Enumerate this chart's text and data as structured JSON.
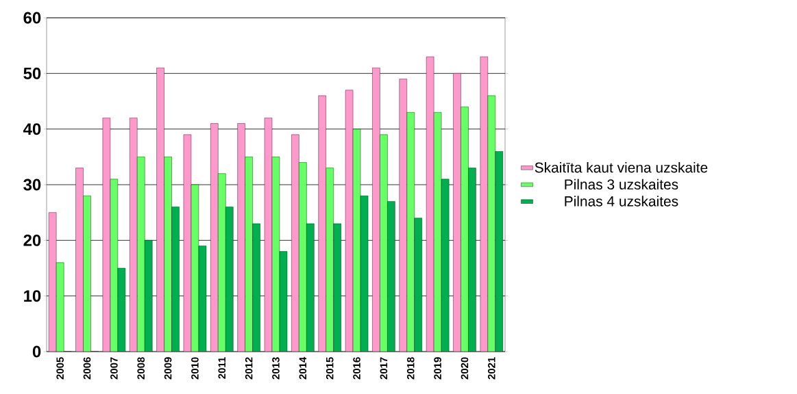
{
  "chart_data": {
    "type": "bar",
    "categories": [
      "2005",
      "2006",
      "2007",
      "2008",
      "2009",
      "2010",
      "2011",
      "2012",
      "2013",
      "2014",
      "2015",
      "2016",
      "2017",
      "2018",
      "2019",
      "2020",
      "2021"
    ],
    "series": [
      {
        "name": "Skaitīta kaut viena uzskaite",
        "color": "#ff99cc",
        "values": [
          25,
          33,
          42,
          42,
          51,
          39,
          41,
          41,
          42,
          39,
          46,
          47,
          51,
          49,
          53,
          50,
          53
        ]
      },
      {
        "name": "Pilnas 3 uzskaites",
        "color": "#66ff66",
        "values": [
          16,
          28,
          31,
          35,
          35,
          30,
          32,
          35,
          35,
          34,
          33,
          40,
          39,
          43,
          43,
          44,
          46
        ]
      },
      {
        "name": "Pilnas 4 uzskaites",
        "color": "#00b050",
        "values": [
          0,
          0,
          15,
          20,
          26,
          19,
          26,
          23,
          18,
          23,
          23,
          28,
          27,
          24,
          31,
          33,
          36
        ]
      }
    ],
    "ylim": [
      0,
      60
    ],
    "yticks": [
      0,
      10,
      20,
      30,
      40,
      50,
      60
    ],
    "grid": "y",
    "legend": "right"
  }
}
